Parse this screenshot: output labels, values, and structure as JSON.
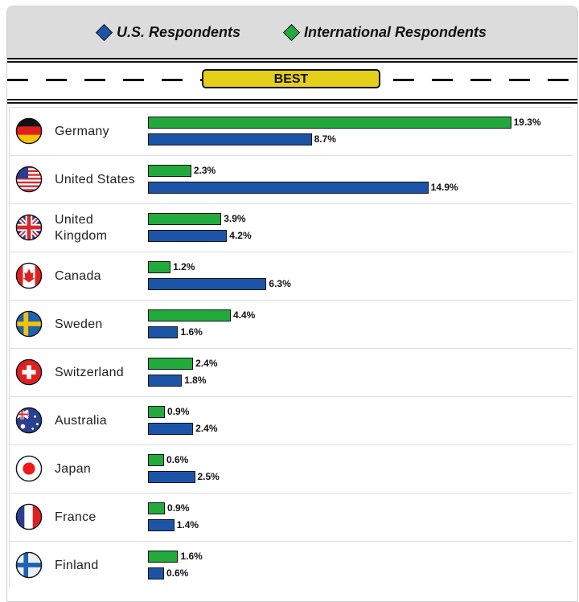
{
  "chart_data": {
    "type": "bar",
    "orientation": "horizontal",
    "section_label": "BEST",
    "categories": [
      "Germany",
      "United States",
      "United Kingdom",
      "Canada",
      "Sweden",
      "Switzerland",
      "Australia",
      "Japan",
      "France",
      "Finland"
    ],
    "series": [
      {
        "name": "International Respondents",
        "color": "#22aa3c",
        "values": [
          19.3,
          2.3,
          3.9,
          1.2,
          4.4,
          2.4,
          0.9,
          0.6,
          0.9,
          1.6
        ],
        "labels": [
          "19.3%",
          "2.3%",
          "3.9%",
          "1.2%",
          "4.4%",
          "2.4%",
          "0.9%",
          "0.6%",
          "0.9%",
          "1.6%"
        ]
      },
      {
        "name": "U.S. Respondents",
        "color": "#1c55a8",
        "values": [
          8.7,
          14.9,
          4.2,
          6.3,
          1.6,
          1.8,
          2.4,
          2.5,
          1.4,
          0.6
        ],
        "labels": [
          "8.7%",
          "14.9%",
          "4.2%",
          "6.3%",
          "1.6%",
          "1.8%",
          "2.4%",
          "2.5%",
          "1.4%",
          "0.6%"
        ]
      }
    ],
    "legend": [
      "U.S. Respondents",
      "International Respondents"
    ],
    "legend_placement": "top",
    "flags": [
      "germany-flag",
      "usa-flag",
      "uk-flag",
      "canada-flag",
      "sweden-flag",
      "switzerland-flag",
      "australia-flag",
      "japan-flag",
      "france-flag",
      "finland-flag"
    ]
  }
}
